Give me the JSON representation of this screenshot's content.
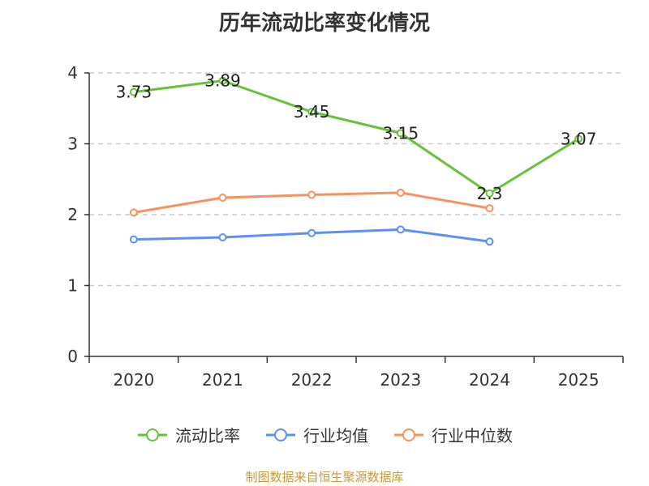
{
  "footer": "制图数据来自恒生聚源数据库",
  "chart_data": {
    "type": "line",
    "title": "历年流动比率变化情况",
    "xlabel": "",
    "ylabel": "",
    "categories": [
      "2020",
      "2021",
      "2022",
      "2023",
      "2024",
      "2025"
    ],
    "ylim": [
      0,
      4
    ],
    "yticks": [
      0,
      1,
      2,
      3,
      4
    ],
    "grid": true,
    "legend_position": "bottom",
    "series": [
      {
        "name": "流动比率",
        "color": "#67c23a",
        "values": [
          3.73,
          3.89,
          3.45,
          3.15,
          2.3,
          3.07
        ],
        "labels": [
          "3.73",
          "3.89",
          "3.45",
          "3.15",
          "2.3",
          "3.07"
        ]
      },
      {
        "name": "行业均值",
        "color": "#5b8ff9",
        "values": [
          1.65,
          1.68,
          1.74,
          1.79,
          1.62,
          null
        ]
      },
      {
        "name": "行业中位数",
        "color": "#f7925c",
        "values": [
          2.03,
          2.24,
          2.28,
          2.31,
          2.09,
          null
        ]
      }
    ]
  }
}
